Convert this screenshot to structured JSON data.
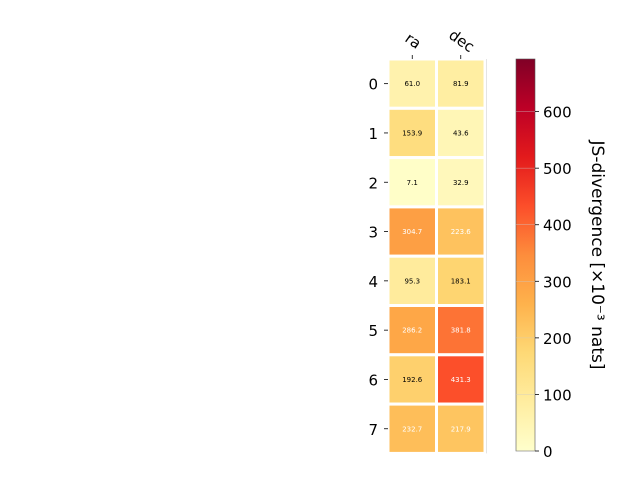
{
  "chart_data": {
    "type": "heatmap",
    "columns": [
      "ra",
      "dec"
    ],
    "rows": [
      "0",
      "1",
      "2",
      "3",
      "4",
      "5",
      "6",
      "7"
    ],
    "values": [
      [
        61.0,
        81.9
      ],
      [
        153.9,
        43.6
      ],
      [
        7.1,
        32.9
      ],
      [
        304.7,
        223.6
      ],
      [
        95.3,
        183.1
      ],
      [
        286.2,
        381.8
      ],
      [
        192.6,
        431.3
      ],
      [
        232.7,
        217.9
      ]
    ],
    "colorbar": {
      "label": "JS-divergence [×10⁻³ nats]",
      "range": [
        0,
        693
      ],
      "ticks": [
        0,
        100,
        200,
        300,
        400,
        500,
        600
      ],
      "colormap": "YlOrRd"
    }
  }
}
